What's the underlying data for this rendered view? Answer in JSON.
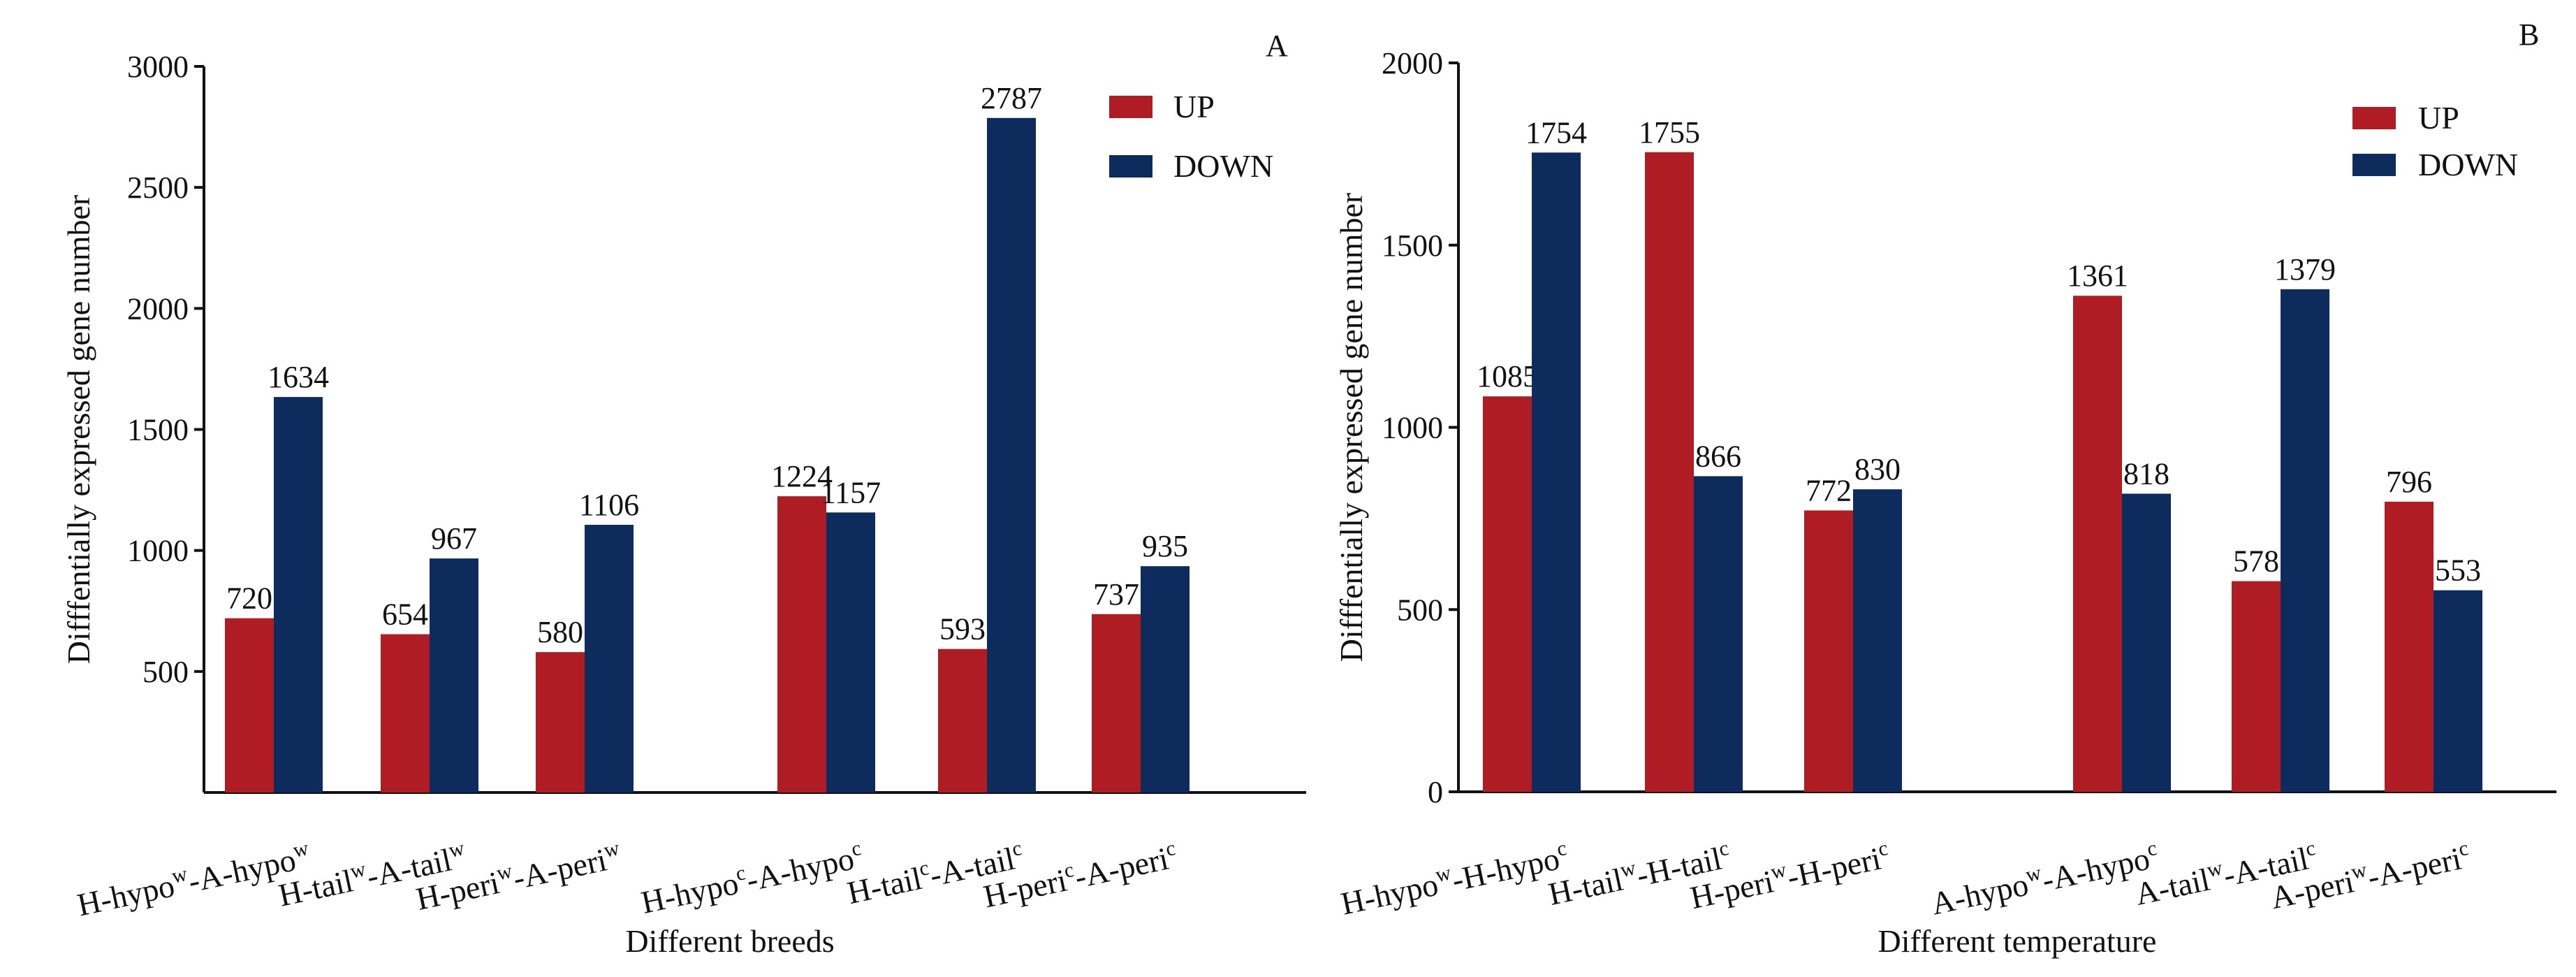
{
  "colors": {
    "up": "#B01C24",
    "down": "#0E2B5E"
  },
  "chart_data": [
    {
      "type": "bar",
      "panel": "A",
      "xlabel": "Different breeds",
      "ylabel": "Difffentially expressed gene number",
      "ylim": [
        0,
        3000
      ],
      "yticks": [
        "500",
        "1000",
        "1500",
        "2000",
        "2500",
        "3000"
      ],
      "legend": {
        "position": "top-right",
        "entries": [
          "UP",
          "DOWN"
        ]
      },
      "categories": [
        {
          "base": "H-hypo",
          "s1": "w",
          "mid": "-A-hypo",
          "s2": "w"
        },
        {
          "base": "H-tail",
          "s1": "w",
          "mid": "-A-tail",
          "s2": "w"
        },
        {
          "base": "H-peri",
          "s1": "w",
          "mid": "-A-peri",
          "s2": "w"
        },
        {
          "base": "H-hypo",
          "s1": "c",
          "mid": "-A-hypo",
          "s2": "c"
        },
        {
          "base": "H-tail",
          "s1": "c",
          "mid": "-A-tail",
          "s2": "c"
        },
        {
          "base": "H-peri",
          "s1": "c",
          "mid": "-A-peri",
          "s2": "c"
        }
      ],
      "series": [
        {
          "name": "UP",
          "values": [
            720,
            654,
            580,
            1224,
            593,
            737
          ]
        },
        {
          "name": "DOWN",
          "values": [
            1634,
            967,
            1106,
            1157,
            2787,
            935
          ]
        }
      ]
    },
    {
      "type": "bar",
      "panel": "B",
      "xlabel": "Different temperature",
      "ylabel": "Difffentially expressed gene number",
      "ylim": [
        0,
        2000
      ],
      "yticks": [
        "0",
        "500",
        "1000",
        "1500",
        "2000"
      ],
      "legend": {
        "position": "top-right",
        "entries": [
          "UP",
          "DOWN"
        ]
      },
      "categories": [
        {
          "base": "H-hypo",
          "s1": "w",
          "mid": "-H-hypo",
          "s2": "c"
        },
        {
          "base": "H-tail",
          "s1": "w",
          "mid": "-H-tail",
          "s2": "c"
        },
        {
          "base": "H-peri",
          "s1": "w",
          "mid": "-H-peri",
          "s2": "c"
        },
        {
          "base": "A-hypo",
          "s1": "w",
          "mid": "-A-hypo",
          "s2": "c"
        },
        {
          "base": "A-tail",
          "s1": "w",
          "mid": "-A-tail",
          "s2": "c"
        },
        {
          "base": "A-peri",
          "s1": "w",
          "mid": "-A-peri",
          "s2": "c"
        }
      ],
      "series": [
        {
          "name": "UP",
          "values": [
            1085,
            1755,
            772,
            1361,
            578,
            796
          ]
        },
        {
          "name": "DOWN",
          "values": [
            1754,
            866,
            830,
            818,
            1379,
            553
          ]
        }
      ]
    }
  ]
}
